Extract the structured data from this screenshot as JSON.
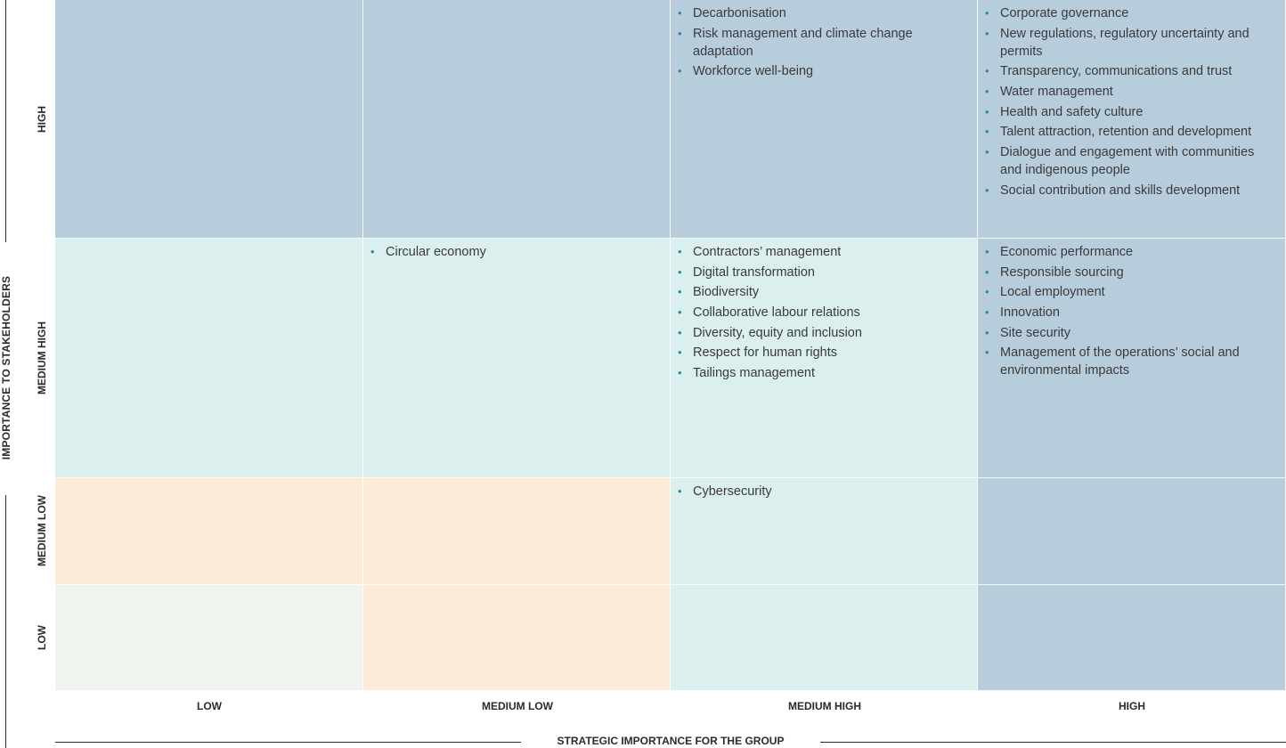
{
  "y_axis_title": "IMPORTANCE TO STAKEHOLDERS",
  "x_axis_title": "STRATEGIC IMPORTANCE FOR THE GROUP",
  "rows": [
    "HIGH",
    "MEDIUM HIGH",
    "MEDIUM LOW",
    "LOW"
  ],
  "columns": [
    "LOW",
    "MEDIUM LOW",
    "MEDIUM HIGH",
    "HIGH"
  ],
  "colors": {
    "blue": "#b8cddb",
    "aqua": "#dcefef",
    "peach": "#fbebd7",
    "mint": "#eff4ef",
    "bullet": "#2f8aa0"
  },
  "cells": {
    "high": {
      "low": [],
      "medium_low": [],
      "medium_high": [
        "Decarbonisation",
        "Risk management and climate change adaptation",
        "Workforce well-being"
      ],
      "high": [
        "Corporate governance",
        "New regulations, regulatory uncertainty and permits",
        "Transparency, communications and trust",
        "Water management",
        "Health and safety culture",
        "Talent attraction, retention and development",
        "Dialogue and engagement with communities and indigenous people",
        "Social contribution and skills development"
      ]
    },
    "medium_high": {
      "low": [],
      "medium_low": [
        "Circular economy"
      ],
      "medium_high": [
        "Contractors’ management",
        "Digital transformation",
        "Biodiversity",
        "Collaborative labour relations",
        "Diversity, equity and inclusion",
        "Respect for human rights",
        "Tailings management"
      ],
      "high": [
        "Economic performance",
        "Responsible sourcing",
        "Local employment",
        "Innovation",
        "Site security",
        "Management of the operations’ social and environmental impacts"
      ]
    },
    "medium_low": {
      "low": [],
      "medium_low": [],
      "medium_high": [
        "Cybersecurity"
      ],
      "high": []
    },
    "low": {
      "low": [],
      "medium_low": [],
      "medium_high": [],
      "high": []
    }
  }
}
